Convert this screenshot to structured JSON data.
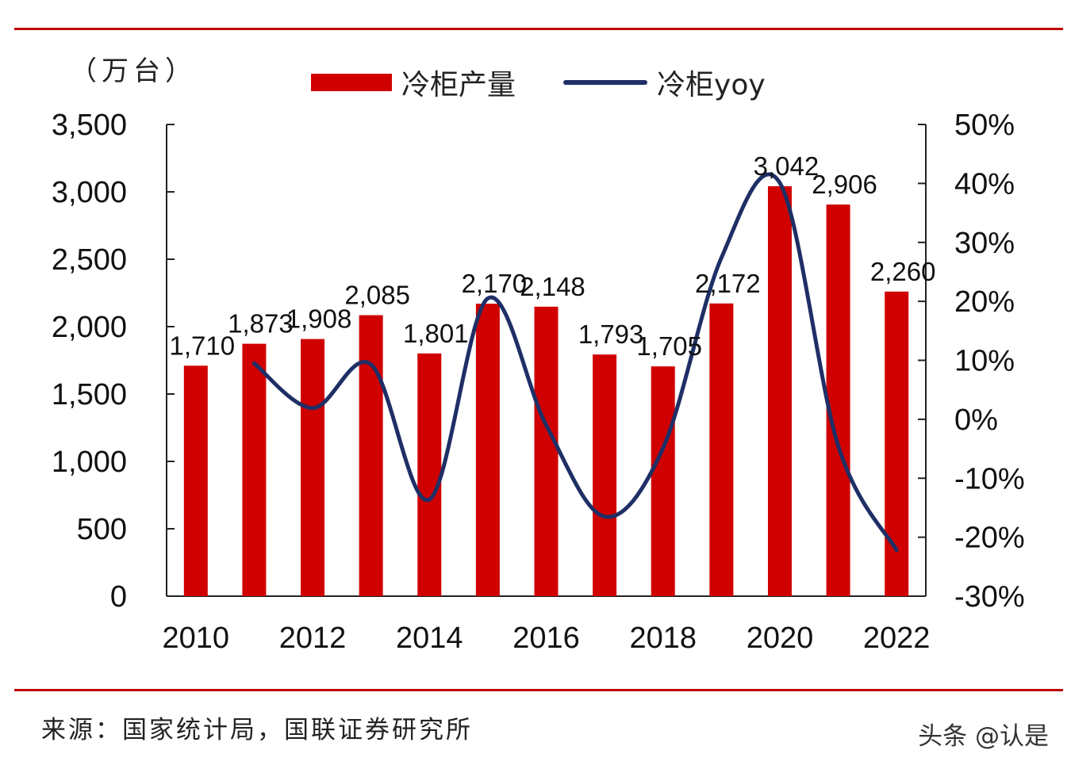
{
  "chart_data": {
    "type": "bar+line",
    "unit_label": "（万台）",
    "categories": [
      "2010",
      "2011",
      "2012",
      "2013",
      "2014",
      "2015",
      "2016",
      "2017",
      "2018",
      "2019",
      "2020",
      "2021",
      "2022"
    ],
    "x_tick_labels": [
      "2010",
      "2012",
      "2014",
      "2016",
      "2018",
      "2020",
      "2022"
    ],
    "series": [
      {
        "name": "冷柜产量",
        "type": "bar",
        "axis": "left",
        "color": "#d00000",
        "values": [
          1710,
          1873,
          1908,
          2085,
          1801,
          2170,
          2148,
          1793,
          1705,
          2172,
          3042,
          2906,
          2260
        ],
        "labels": [
          "1,710",
          "1,873",
          "1,908",
          "2,085",
          "1,801",
          "2,170",
          "2,148",
          "1,793",
          "1,705",
          "2,172",
          "3,042",
          "2,906",
          "2,260"
        ]
      },
      {
        "name": "冷柜yoy",
        "type": "line",
        "axis": "right",
        "color": "#1f2f66",
        "values": [
          null,
          9.5,
          1.9,
          9.3,
          -13.6,
          20.5,
          -1.0,
          -16.5,
          -4.9,
          27.4,
          40.1,
          -4.5,
          -22.2
        ]
      }
    ],
    "left_axis": {
      "ylim": [
        0,
        3500
      ],
      "ticks": [
        "0",
        "500",
        "1,000",
        "1,500",
        "2,000",
        "2,500",
        "3,000",
        "3,500"
      ]
    },
    "right_axis": {
      "ylim": [
        -30,
        50
      ],
      "ticks": [
        "-30%",
        "-20%",
        "-10%",
        "0%",
        "10%",
        "20%",
        "30%",
        "40%",
        "50%"
      ]
    },
    "grid": false,
    "legend": "top"
  },
  "source": "来源：国家统计局，国联证券研究所",
  "watermark": "头条 @认是"
}
